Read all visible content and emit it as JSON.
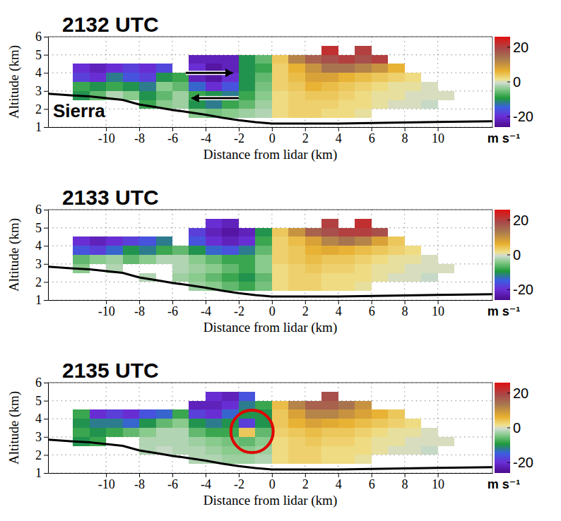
{
  "chart_data": [
    {
      "type": "heatmap",
      "title": "2132 UTC",
      "x_label": "Distance from lidar (km)",
      "y_label": "Altitude (km)",
      "xlim": [
        -13.5,
        13.3
      ],
      "ylim": [
        1,
        6
      ],
      "xticks": [
        -10,
        -8,
        -6,
        -4,
        -2,
        0,
        2,
        4,
        6,
        8,
        10
      ],
      "yticks": [
        1,
        2,
        3,
        4,
        5,
        6
      ],
      "grid": true,
      "x": [
        -11.5,
        -10.5,
        -9.5,
        -8.5,
        -7.5,
        -6.5,
        -5.5,
        -4.5,
        -3.5,
        -2.5,
        -1.5,
        -0.5,
        0.5,
        1.5,
        2.5,
        3.5,
        4.5,
        5.5,
        6.5,
        7.5,
        8.5,
        9.5,
        10.5
      ],
      "y": [
        5.25,
        4.75,
        4.25,
        3.75,
        3.25,
        2.75,
        2.25,
        1.75
      ],
      "cells": [
        [
          null,
          null,
          null,
          null,
          null,
          null,
          null,
          null,
          null,
          null,
          null,
          null,
          null,
          null,
          null,
          22,
          null,
          20,
          null,
          null,
          null,
          null,
          null
        ],
        [
          null,
          null,
          null,
          null,
          null,
          null,
          null,
          -22,
          -22,
          -22,
          -10,
          -6,
          4,
          12,
          16,
          18,
          20,
          18,
          20,
          null,
          null,
          null,
          null
        ],
        [
          -20,
          -22,
          -20,
          -18,
          -20,
          -17,
          null,
          -20,
          -24,
          -22,
          -10,
          -8,
          3,
          6,
          10,
          14,
          14,
          12,
          10,
          6,
          null,
          null,
          null
        ],
        [
          -18,
          -20,
          -12,
          -16,
          -18,
          -10,
          -8,
          -22,
          -24,
          -20,
          -10,
          -6,
          3,
          5,
          8,
          8,
          6,
          5,
          4,
          3,
          2,
          null,
          null
        ],
        [
          -8,
          -10,
          -8,
          -10,
          -12,
          -4,
          -6,
          -14,
          -20,
          -16,
          -10,
          -5,
          3,
          4,
          6,
          5,
          4,
          3,
          2,
          1,
          1,
          0,
          null
        ],
        [
          -10,
          -6,
          -2,
          -4,
          -10,
          -6,
          -3,
          -8,
          -10,
          -12,
          -8,
          -4,
          2,
          3,
          4,
          4,
          3,
          2,
          1,
          1,
          0,
          0,
          0
        ],
        [
          null,
          null,
          null,
          null,
          -8,
          -4,
          -3,
          -10,
          -12,
          -8,
          -6,
          -3,
          2,
          3,
          3,
          3,
          2,
          2,
          1,
          0,
          0,
          -1,
          null
        ],
        [
          null,
          null,
          null,
          null,
          null,
          null,
          null,
          -4,
          -5,
          -4,
          -3,
          -2,
          2,
          3,
          3,
          2,
          2,
          1,
          null,
          null,
          null,
          null,
          null
        ]
      ],
      "colorbar": {
        "range": [
          -26,
          26
        ],
        "ticks": [
          -20,
          0,
          20
        ],
        "label": "m s⁻¹"
      },
      "line": {
        "x": [
          -13.5,
          -12,
          -11,
          -10,
          -9,
          -8,
          -7,
          -6,
          -5,
          -4,
          -3,
          -2,
          -1,
          0,
          2,
          4,
          6,
          8,
          10,
          13.3
        ],
        "values": [
          2.85,
          2.75,
          2.7,
          2.6,
          2.5,
          2.25,
          2.1,
          1.95,
          1.82,
          1.68,
          1.52,
          1.38,
          1.27,
          1.2,
          1.2,
          1.2,
          1.22,
          1.25,
          1.28,
          1.32
        ]
      },
      "annotations": [
        {
          "text": "Sierra",
          "x": -13.2,
          "y": 1.55
        }
      ]
    },
    {
      "type": "heatmap",
      "title": "2133 UTC",
      "x_label": "Distance from lidar (km)",
      "y_label": "Altitude (km)",
      "xlim": [
        -13.5,
        13.3
      ],
      "ylim": [
        1,
        6
      ],
      "xticks": [
        -10,
        -8,
        -6,
        -4,
        -2,
        0,
        2,
        4,
        6,
        8,
        10
      ],
      "yticks": [
        1,
        2,
        3,
        4,
        5,
        6
      ],
      "grid": true,
      "x": [
        -11.5,
        -10.5,
        -9.5,
        -8.5,
        -7.5,
        -6.5,
        -5.5,
        -4.5,
        -3.5,
        -2.5,
        -1.5,
        -0.5,
        0.5,
        1.5,
        2.5,
        3.5,
        4.5,
        5.5,
        6.5,
        7.5,
        8.5,
        9.5,
        10.5
      ],
      "y": [
        5.25,
        4.75,
        4.25,
        3.75,
        3.25,
        2.75,
        2.25,
        1.75
      ],
      "cells": [
        [
          null,
          null,
          null,
          null,
          null,
          null,
          null,
          null,
          -20,
          -22,
          null,
          null,
          null,
          null,
          null,
          20,
          null,
          22,
          null,
          null,
          null,
          null,
          null
        ],
        [
          null,
          null,
          null,
          null,
          null,
          null,
          null,
          -18,
          -22,
          -24,
          -22,
          -10,
          4,
          10,
          16,
          18,
          20,
          20,
          18,
          null,
          null,
          null,
          null
        ],
        [
          -20,
          -22,
          -20,
          -18,
          -16,
          -12,
          null,
          -16,
          -20,
          -22,
          -20,
          -8,
          3,
          5,
          8,
          12,
          14,
          12,
          8,
          4,
          null,
          null,
          null
        ],
        [
          -16,
          -18,
          -14,
          -10,
          -12,
          -8,
          -6,
          -10,
          -14,
          -16,
          -12,
          -6,
          3,
          4,
          6,
          7,
          6,
          5,
          4,
          3,
          2,
          null,
          null
        ],
        [
          -6,
          -4,
          -3,
          -6,
          -4,
          -2,
          -2,
          -4,
          -6,
          -8,
          -8,
          -4,
          3,
          4,
          5,
          4,
          4,
          3,
          2,
          1,
          1,
          0,
          null
        ],
        [
          -4,
          null,
          -2,
          null,
          null,
          null,
          -2,
          -3,
          -4,
          -6,
          -8,
          -4,
          2,
          3,
          4,
          3,
          3,
          2,
          1,
          1,
          0,
          0,
          0
        ],
        [
          null,
          null,
          null,
          null,
          -2,
          null,
          -3,
          -4,
          -6,
          -8,
          -10,
          -6,
          2,
          3,
          3,
          2,
          2,
          2,
          1,
          0,
          0,
          -1,
          null
        ],
        [
          null,
          null,
          null,
          null,
          null,
          null,
          null,
          -3,
          -4,
          -6,
          -8,
          -5,
          2,
          3,
          3,
          2,
          2,
          1,
          null,
          null,
          null,
          null,
          null
        ]
      ],
      "colorbar": {
        "range": [
          -26,
          26
        ],
        "ticks": [
          -20,
          0,
          20
        ],
        "label": "m s⁻¹"
      },
      "line": {
        "x": [
          -13.5,
          -12,
          -11,
          -10,
          -9,
          -8,
          -7,
          -6,
          -5,
          -4,
          -3,
          -2,
          -1,
          0,
          2,
          4,
          6,
          8,
          10,
          13.3
        ],
        "values": [
          2.85,
          2.75,
          2.7,
          2.6,
          2.5,
          2.25,
          2.1,
          1.95,
          1.82,
          1.68,
          1.52,
          1.38,
          1.27,
          1.2,
          1.2,
          1.2,
          1.22,
          1.25,
          1.28,
          1.32
        ]
      }
    },
    {
      "type": "heatmap",
      "title": "2135 UTC",
      "x_label": "Distance from lidar (km)",
      "y_label": "Altitude (km)",
      "xlim": [
        -13.5,
        13.3
      ],
      "ylim": [
        1,
        6
      ],
      "xticks": [
        -10,
        -8,
        -6,
        -4,
        -2,
        0,
        2,
        4,
        6,
        8,
        10
      ],
      "yticks": [
        1,
        2,
        3,
        4,
        5,
        6
      ],
      "grid": true,
      "x": [
        -11.5,
        -10.5,
        -9.5,
        -8.5,
        -7.5,
        -6.5,
        -5.5,
        -4.5,
        -3.5,
        -2.5,
        -1.5,
        -0.5,
        0.5,
        1.5,
        2.5,
        3.5,
        4.5,
        5.5,
        6.5,
        7.5,
        8.5,
        9.5,
        10.5
      ],
      "y": [
        5.25,
        4.75,
        4.25,
        3.75,
        3.25,
        2.75,
        2.25,
        1.75
      ],
      "cells": [
        [
          null,
          null,
          null,
          null,
          null,
          null,
          null,
          null,
          -20,
          -22,
          -16,
          null,
          null,
          null,
          null,
          18,
          null,
          null,
          null,
          null,
          null,
          null,
          null
        ],
        [
          null,
          null,
          null,
          null,
          null,
          null,
          null,
          -22,
          -22,
          -20,
          -12,
          -8,
          5,
          12,
          16,
          16,
          14,
          10,
          null,
          null,
          null,
          null,
          null
        ],
        [
          -8,
          -20,
          -18,
          -20,
          -16,
          -14,
          -8,
          -18,
          -20,
          -14,
          -10,
          -10,
          4,
          8,
          12,
          12,
          10,
          8,
          6,
          4,
          null,
          null,
          null
        ],
        [
          -10,
          -12,
          -12,
          -14,
          -10,
          -6,
          -4,
          -10,
          -12,
          -10,
          -18,
          -10,
          4,
          6,
          8,
          7,
          6,
          5,
          4,
          3,
          2,
          null,
          null
        ],
        [
          -8,
          -10,
          -8,
          -6,
          -4,
          -2,
          -2,
          -6,
          -8,
          -8,
          4,
          -6,
          3,
          4,
          5,
          4,
          4,
          3,
          2,
          1,
          1,
          0,
          null
        ],
        [
          -10,
          -8,
          null,
          null,
          -2,
          -2,
          -2,
          -3,
          -4,
          -5,
          -6,
          -4,
          2,
          3,
          4,
          3,
          3,
          2,
          1,
          1,
          0,
          0,
          0
        ],
        [
          null,
          null,
          null,
          null,
          -2,
          -1,
          -2,
          -2,
          -3,
          -4,
          -4,
          -3,
          2,
          3,
          3,
          2,
          2,
          2,
          1,
          0,
          0,
          -1,
          null
        ],
        [
          null,
          null,
          null,
          null,
          null,
          null,
          null,
          -2,
          -2,
          -3,
          -3,
          -2,
          2,
          3,
          3,
          2,
          2,
          1,
          null,
          null,
          null,
          null,
          null
        ]
      ],
      "colorbar": {
        "range": [
          -26,
          26
        ],
        "ticks": [
          -20,
          0,
          20
        ],
        "label": "m s⁻¹"
      },
      "line": {
        "x": [
          -13.5,
          -12,
          -11,
          -10,
          -9,
          -8,
          -7,
          -6,
          -5,
          -4,
          -3,
          -2,
          -1,
          0,
          2,
          4,
          6,
          8,
          10,
          13.3
        ],
        "values": [
          2.85,
          2.75,
          2.7,
          2.6,
          2.5,
          2.25,
          2.1,
          1.95,
          1.82,
          1.68,
          1.52,
          1.38,
          1.27,
          1.2,
          1.2,
          1.2,
          1.22,
          1.25,
          1.28,
          1.32
        ]
      }
    }
  ]
}
